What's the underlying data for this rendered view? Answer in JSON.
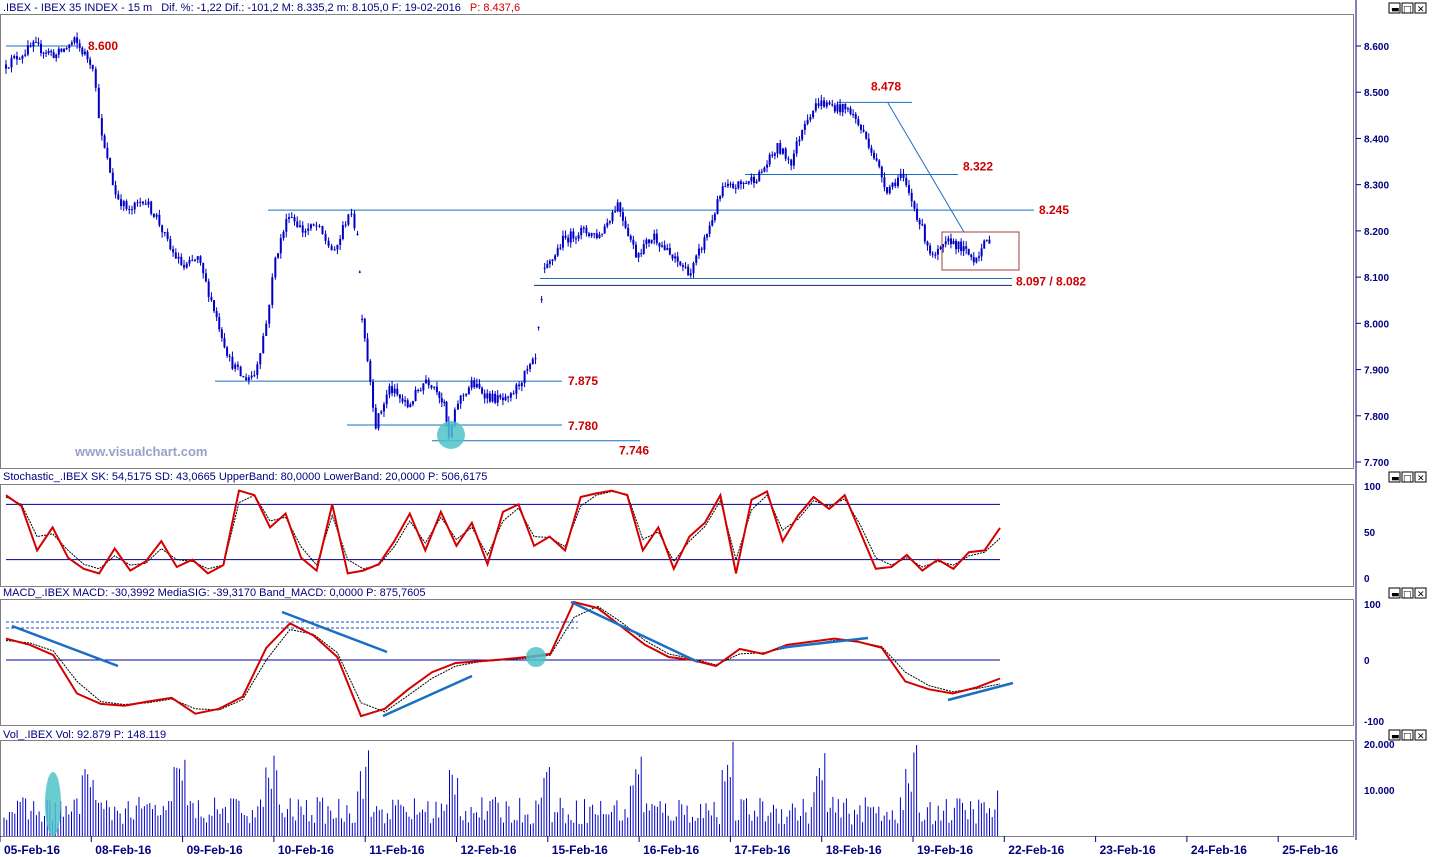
{
  "panes": {
    "price": {
      "header": {
        "symbol": ".IBEX - IBEX 35 INDEX - 15 m",
        "stats": "Dif. %: -1,22  Dif.: -101,2  M: 8.335,2  m: 8.105,0  F: 19-02-2016",
        "p_label": "P: 8.437,6"
      },
      "watermark": "www.visualchart.com"
    },
    "stochastic": {
      "header": "Stochastic_.IBEX SK: 54,5175  SD: 43,0665  UpperBand: 80,0000  LowerBand: 20,0000  P: 506,6175"
    },
    "macd": {
      "header": "MACD_.IBEX MACD: -30,3992  MediaSIG: -39,3170  Band_MACD: 0,0000  P: 875,7605"
    },
    "volume": {
      "header": "Vol_.IBEX Vol: 92.879  P: 148.119"
    }
  },
  "levels": [
    {
      "name": "level-8600",
      "label": "8.600",
      "value": 8600
    },
    {
      "name": "level-8478",
      "label": "8.478",
      "value": 8478
    },
    {
      "name": "level-8322",
      "label": "8.322",
      "value": 8322
    },
    {
      "name": "level-8245",
      "label": "8.245",
      "value": 8245
    },
    {
      "name": "level-8097",
      "label": "8.097 / 8.082",
      "value": 8097
    },
    {
      "name": "level-7875",
      "label": "7.875",
      "value": 7875
    },
    {
      "name": "level-7780",
      "label": "7.780",
      "value": 7780
    },
    {
      "name": "level-7746",
      "label": "7.746",
      "value": 7746
    }
  ],
  "chart_data": [
    {
      "type": "candlestick",
      "title": ".IBEX - IBEX 35 INDEX - 15 m",
      "ylim": [
        7700,
        8650
      ],
      "y_ticks": [
        "8.600",
        "8.500",
        "8.400",
        "8.300",
        "8.200",
        "8.100",
        "8.000",
        "7.900",
        "7.800",
        "7.700"
      ],
      "x_ticks": [
        "05-Feb-16",
        "08-Feb-16",
        "09-Feb-16",
        "10-Feb-16",
        "11-Feb-16",
        "12-Feb-16",
        "15-Feb-16",
        "16-Feb-16",
        "17-Feb-16",
        "18-Feb-16",
        "19-Feb-16",
        "22-Feb-16",
        "23-Feb-16",
        "24-Feb-16",
        "25-Feb-16"
      ],
      "series": [
        {
          "name": "IBEX 35",
          "path": [
            [
              0,
              8560
            ],
            [
              0.3,
              8600
            ],
            [
              0.55,
              8580
            ],
            [
              0.75,
              8610
            ],
            [
              0.95,
              8560
            ],
            [
              1.05,
              8400
            ],
            [
              1.2,
              8280
            ],
            [
              1.35,
              8240
            ],
            [
              1.5,
              8270
            ],
            [
              1.65,
              8230
            ],
            [
              1.8,
              8160
            ],
            [
              1.95,
              8120
            ],
            [
              2.1,
              8140
            ],
            [
              2.25,
              8050
            ],
            [
              2.45,
              7920
            ],
            [
              2.6,
              7880
            ],
            [
              2.72,
              7890
            ],
            [
              2.85,
              8000
            ],
            [
              2.95,
              8140
            ],
            [
              3.1,
              8240
            ],
            [
              3.25,
              8200
            ],
            [
              3.4,
              8210
            ],
            [
              3.5,
              8180
            ],
            [
              3.6,
              8150
            ],
            [
              3.75,
              8240
            ],
            [
              3.85,
              8200
            ],
            [
              3.9,
              8020
            ],
            [
              4.05,
              7780
            ],
            [
              4.2,
              7860
            ],
            [
              4.4,
              7820
            ],
            [
              4.6,
              7880
            ],
            [
              4.72,
              7860
            ],
            [
              4.8,
              7820
            ],
            [
              4.85,
              7750
            ],
            [
              4.95,
              7830
            ],
            [
              5.1,
              7870
            ],
            [
              5.3,
              7840
            ],
            [
              5.5,
              7830
            ],
            [
              5.65,
              7880
            ],
            [
              5.8,
              7920
            ],
            [
              5.9,
              8110
            ],
            [
              6.1,
              8180
            ],
            [
              6.3,
              8200
            ],
            [
              6.5,
              8190
            ],
            [
              6.7,
              8260
            ],
            [
              6.9,
              8150
            ],
            [
              7.1,
              8190
            ],
            [
              7.3,
              8140
            ],
            [
              7.5,
              8110
            ],
            [
              7.65,
              8180
            ],
            [
              7.85,
              8290
            ],
            [
              8.05,
              8300
            ],
            [
              8.25,
              8320
            ],
            [
              8.45,
              8380
            ],
            [
              8.6,
              8350
            ],
            [
              8.75,
              8440
            ],
            [
              8.9,
              8478
            ],
            [
              9.05,
              8470
            ],
            [
              9.25,
              8460
            ],
            [
              9.45,
              8390
            ],
            [
              9.65,
              8290
            ],
            [
              9.8,
              8320
            ],
            [
              9.95,
              8250
            ],
            [
              10.15,
              8140
            ],
            [
              10.35,
              8180
            ],
            [
              10.6,
              8140
            ],
            [
              10.8,
              8190
            ]
          ]
        }
      ]
    },
    {
      "type": "line",
      "title": "Stochastic_.IBEX",
      "ylim": [
        0,
        100
      ],
      "y_ticks": [
        "100",
        "50",
        "0"
      ],
      "bands": [
        80,
        20
      ],
      "series": [
        {
          "name": "SK",
          "values": [
            90,
            78,
            30,
            55,
            22,
            10,
            5,
            32,
            8,
            18,
            40,
            12,
            20,
            5,
            14,
            95,
            90,
            55,
            70,
            22,
            8,
            80,
            5,
            8,
            15,
            40,
            70,
            30,
            72,
            35,
            60,
            15,
            72,
            80,
            35,
            45,
            30,
            88,
            92,
            95,
            90,
            30,
            55,
            10,
            45,
            60,
            90,
            5,
            85,
            94,
            40,
            68,
            88,
            75,
            90,
            50,
            10,
            12,
            25,
            8,
            20,
            10,
            28,
            30,
            54.5
          ]
        },
        {
          "name": "SD",
          "values": [
            88,
            80,
            45,
            48,
            30,
            15,
            10,
            24,
            14,
            16,
            32,
            20,
            18,
            10,
            14,
            82,
            90,
            62,
            66,
            34,
            14,
            68,
            20,
            10,
            14,
            34,
            62,
            38,
            66,
            42,
            55,
            25,
            62,
            76,
            45,
            44,
            34,
            78,
            90,
            94,
            91,
            42,
            50,
            18,
            40,
            56,
            84,
            20,
            74,
            90,
            52,
            64,
            84,
            78,
            86,
            58,
            22,
            14,
            22,
            12,
            18,
            14,
            24,
            28,
            43.1
          ]
        }
      ]
    },
    {
      "type": "line",
      "title": "MACD_.IBEX",
      "ylim": [
        -100,
        100
      ],
      "y_ticks": [
        "100",
        "0",
        "-100"
      ],
      "zero_line": 0,
      "series": [
        {
          "name": "MACD",
          "values": [
            35,
            25,
            8,
            -55,
            -72,
            -75,
            -68,
            -62,
            -88,
            -80,
            -60,
            20,
            60,
            40,
            5,
            -92,
            -80,
            -48,
            -20,
            -5,
            -2,
            1,
            5,
            10,
            95,
            85,
            55,
            25,
            5,
            0,
            -10,
            18,
            10,
            25,
            30,
            35,
            30,
            20,
            -35,
            -48,
            -55,
            -45,
            -30.4
          ]
        },
        {
          "name": "MediaSIG",
          "values": [
            32,
            28,
            15,
            -35,
            -68,
            -73,
            -70,
            -64,
            -80,
            -82,
            -65,
            0,
            50,
            42,
            12,
            -70,
            -85,
            -58,
            -30,
            -10,
            -3,
            0,
            3,
            8,
            70,
            88,
            62,
            32,
            10,
            2,
            -8,
            10,
            12,
            20,
            26,
            32,
            30,
            22,
            -20,
            -42,
            -52,
            -47,
            -39.3
          ]
        }
      ]
    },
    {
      "type": "bar",
      "title": "Vol_.IBEX",
      "ylim": [
        0,
        21000
      ],
      "y_ticks": [
        "20.000",
        "10.000"
      ],
      "series": [
        {
          "name": "Vol",
          "last": 92879
        }
      ]
    }
  ]
}
